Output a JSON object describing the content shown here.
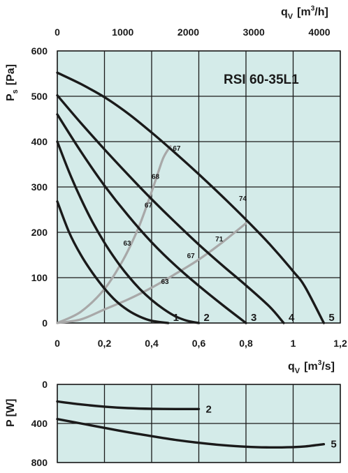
{
  "colors": {
    "background": "#d4ebe9",
    "grid": "#1a1a1a",
    "curve": "#1a1a1a",
    "efficiency": "#a8a8a8",
    "text": "#1a1a1a"
  },
  "chart_data": [
    {
      "type": "line",
      "title": "RSI  60-35L1",
      "xlabel": "q",
      "xlabel_sub": "V",
      "xlabel_unit_pre": "[m",
      "xlabel_unit_sup": "3",
      "xlabel_unit_post": "/s]",
      "x2label": "q",
      "x2label_sub": "V",
      "x2label_unit_pre": "[m",
      "x2label_unit_sup": "3",
      "x2label_unit_post": "/h]",
      "ylabel": "P",
      "ylabel_sub": "s",
      "ylabel_unit": "[Pa]",
      "xlim": [
        0,
        1.2
      ],
      "ylim": [
        0,
        600
      ],
      "x_ticks": [
        "0",
        "0,2",
        "0,4",
        "0,6",
        "0,8",
        "1",
        "1,2"
      ],
      "x2_ticks": [
        "0",
        "1000",
        "2000",
        "3000",
        "4000"
      ],
      "y_ticks": [
        "0",
        "100",
        "200",
        "300",
        "400",
        "500",
        "600"
      ],
      "grid": true,
      "series": [
        {
          "name": "1",
          "x": [
            0,
            0.05,
            0.1,
            0.15,
            0.2,
            0.25,
            0.3,
            0.35,
            0.4,
            0.47
          ],
          "y": [
            268,
            200,
            150,
            110,
            76,
            48,
            28,
            14,
            5,
            0
          ]
        },
        {
          "name": "2",
          "x": [
            0,
            0.05,
            0.1,
            0.15,
            0.2,
            0.25,
            0.3,
            0.35,
            0.4,
            0.45,
            0.5,
            0.55,
            0.6
          ],
          "y": [
            400,
            333,
            274,
            222,
            177,
            138,
            104,
            75,
            51,
            31,
            15,
            5,
            0
          ]
        },
        {
          "name": "3",
          "x": [
            0,
            0.1,
            0.2,
            0.3,
            0.4,
            0.5,
            0.6,
            0.7,
            0.8
          ],
          "y": [
            460,
            378,
            303,
            237,
            178,
            127,
            82,
            40,
            0
          ]
        },
        {
          "name": "4",
          "x": [
            0,
            0.1,
            0.2,
            0.3,
            0.4,
            0.5,
            0.6,
            0.7,
            0.8,
            0.9,
            0.96
          ],
          "y": [
            502,
            441,
            383,
            327,
            273,
            222,
            173,
            127,
            83,
            36,
            0
          ]
        },
        {
          "name": "5",
          "x": [
            0,
            0.1,
            0.2,
            0.3,
            0.4,
            0.5,
            0.6,
            0.7,
            0.8,
            0.9,
            1.0,
            1.05,
            1.13
          ],
          "y": [
            552,
            527,
            498,
            462,
            420,
            375,
            328,
            279,
            228,
            174,
            114,
            80,
            0
          ]
        }
      ],
      "efficiency_curves": [
        {
          "x": [
            0,
            0.1,
            0.2,
            0.28,
            0.34,
            0.38,
            0.42,
            0.45,
            0.48
          ],
          "y": [
            0,
            25,
            75,
            140,
            205,
            260,
            320,
            365,
            390
          ]
        },
        {
          "x": [
            0,
            0.1,
            0.2,
            0.3,
            0.4,
            0.5,
            0.6,
            0.7,
            0.8
          ],
          "y": [
            0,
            8,
            30,
            52,
            78,
            108,
            140,
            178,
            220
          ]
        }
      ],
      "annotations": [
        {
          "text": "67",
          "x": 0.49,
          "y": 380
        },
        {
          "text": "68",
          "x": 0.4,
          "y": 318
        },
        {
          "text": "67",
          "x": 0.37,
          "y": 255
        },
        {
          "text": "63",
          "x": 0.28,
          "y": 171
        },
        {
          "text": "74",
          "x": 0.77,
          "y": 269
        },
        {
          "text": "71",
          "x": 0.67,
          "y": 180
        },
        {
          "text": "67",
          "x": 0.55,
          "y": 143
        },
        {
          "text": "63",
          "x": 0.44,
          "y": 86
        }
      ]
    },
    {
      "type": "line",
      "xlabel": "",
      "ylabel": "P",
      "ylabel_unit": "[W]",
      "xlim": [
        0,
        1.2
      ],
      "ylim": [
        800,
        0
      ],
      "y_ticks": [
        "0",
        "400",
        "800"
      ],
      "grid": true,
      "series": [
        {
          "name": "2",
          "x": [
            0,
            0.1,
            0.2,
            0.3,
            0.4,
            0.5,
            0.6
          ],
          "y": [
            175,
            205,
            228,
            243,
            250,
            252,
            252
          ]
        },
        {
          "name": "5",
          "x": [
            0,
            0.1,
            0.2,
            0.3,
            0.4,
            0.5,
            0.6,
            0.7,
            0.8,
            0.9,
            1.0,
            1.05,
            1.13
          ],
          "y": [
            355,
            400,
            445,
            490,
            530,
            568,
            598,
            622,
            638,
            645,
            642,
            635,
            612
          ]
        }
      ]
    }
  ]
}
